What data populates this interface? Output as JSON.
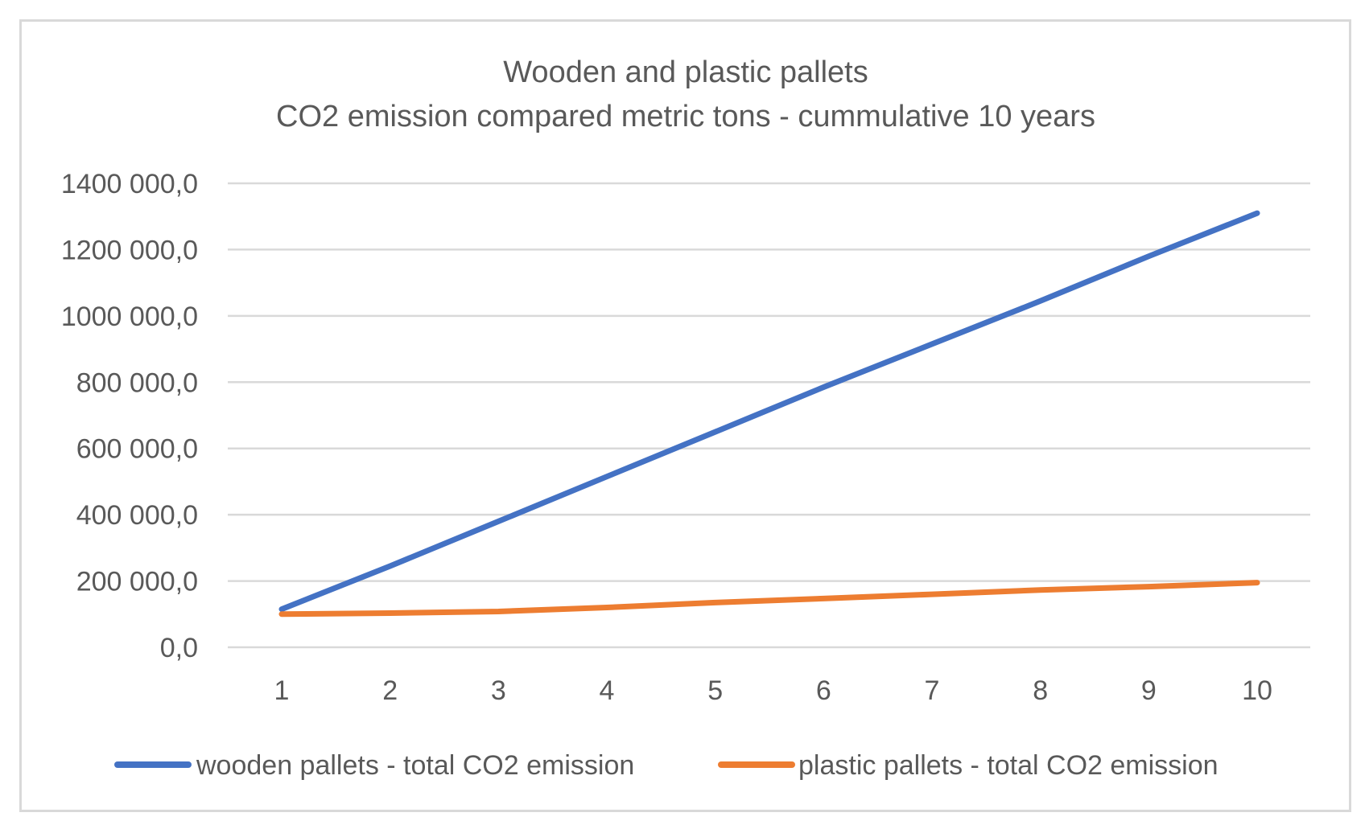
{
  "chart_data": {
    "type": "line",
    "title_lines": [
      "Wooden and plastic pallets",
      "CO2 emission compared metric tons -  cummulative 10 years"
    ],
    "categories": [
      "1",
      "2",
      "3",
      "4",
      "5",
      "6",
      "7",
      "8",
      "9",
      "10"
    ],
    "series": [
      {
        "name": "wooden pallets - total CO2 emission",
        "color": "#4472c4",
        "values": [
          115000,
          245000,
          380000,
          515000,
          650000,
          785000,
          915000,
          1045000,
          1180000,
          1310000
        ]
      },
      {
        "name": "plastic pallets - total CO2 emission",
        "color": "#ed7d31",
        "values": [
          100000,
          103000,
          108000,
          120000,
          135000,
          147000,
          160000,
          173000,
          183000,
          195000
        ]
      }
    ],
    "ylim": [
      0,
      1400000
    ],
    "ytick_labels": [
      "0,0",
      "200 000,0",
      "400 000,0",
      "600 000,0",
      "800 000,0",
      "1000 000,0",
      "1200 000,0",
      "1400 000,0"
    ],
    "grid": true,
    "legend_position": "bottom",
    "colors": {
      "grid": "#d9d9d9",
      "text": "#595959",
      "border": "#d9d9d9"
    }
  }
}
